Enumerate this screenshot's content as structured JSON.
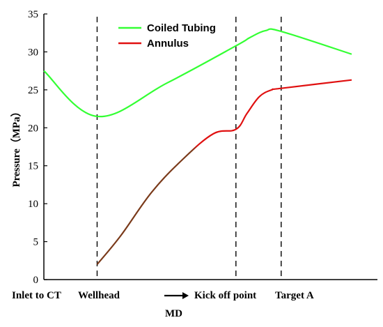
{
  "chart_data": {
    "type": "line",
    "ylabel": "Pressure（MPa）",
    "ylim": [
      0,
      35
    ],
    "yticks": [
      0,
      5,
      10,
      15,
      20,
      25,
      30,
      35
    ],
    "xlabel": "MD",
    "xlim": [
      0,
      100
    ],
    "x_markers": [
      {
        "label": "Inlet to CT",
        "x": 0,
        "dashed": false
      },
      {
        "label": "Wellhead",
        "x": 17.3,
        "dashed": true
      },
      {
        "label": "Kick off point",
        "x": 62.4,
        "dashed": true
      },
      {
        "label": "Target A",
        "x": 77.1,
        "dashed": true
      }
    ],
    "legend": {
      "position": "top-left"
    },
    "grid": false,
    "series": [
      {
        "name": "Coiled Tubing",
        "color": "#33ff33",
        "points": [
          [
            0,
            27.5
          ],
          [
            17.3,
            21.5
          ],
          [
            40,
            25.9
          ],
          [
            62.4,
            30.8
          ],
          [
            67,
            31.9
          ],
          [
            72,
            32.8
          ],
          [
            77.1,
            32.7
          ],
          [
            100,
            29.7
          ]
        ]
      },
      {
        "name": "Annulus",
        "color": "#e01010",
        "lower_color": "#7a3a1a",
        "points": [
          [
            17.3,
            2.0
          ],
          [
            25,
            5.8
          ],
          [
            35,
            11.5
          ],
          [
            45,
            15.8
          ],
          [
            55,
            19.2
          ],
          [
            62.4,
            19.8
          ],
          [
            66,
            21.9
          ],
          [
            70,
            24.1
          ],
          [
            74,
            25.0
          ],
          [
            77.1,
            25.2
          ],
          [
            100,
            26.3
          ]
        ]
      }
    ]
  }
}
